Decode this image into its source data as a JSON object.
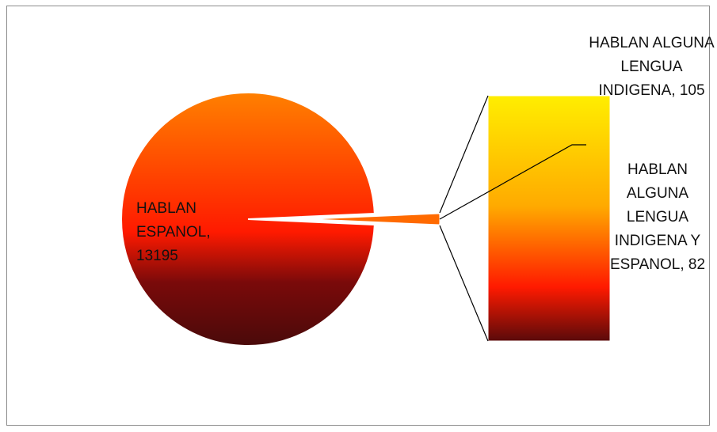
{
  "chart_data": {
    "type": "pie",
    "subtype": "bar-of-pie",
    "title": "",
    "categories": [
      "HABLAN ESPANOL",
      "HABLAN ALGUNA LENGUA INDIGENA",
      "HABLAN ALGUNA LENGUA INDIGENA Y ESPANOL"
    ],
    "values": [
      13195,
      105,
      82
    ],
    "data_labels": [
      "HABLAN ESPANOL, 13195",
      "HABLAN ALGUNA LENGUA INDIGENA, 105",
      "HABLAN ALGUNA LENGUA INDIGENA Y ESPANOL, 82"
    ],
    "secondary_bar_categories": [
      1,
      2
    ],
    "colors": {
      "gradient_top": "#ff8000",
      "gradient_mid": "#ff1a00",
      "gradient_bottom": "#4a0a0a",
      "bar_top": "#ffee00",
      "bar_bottom": "#5a0a0a"
    },
    "legend": "none",
    "grid": false
  }
}
